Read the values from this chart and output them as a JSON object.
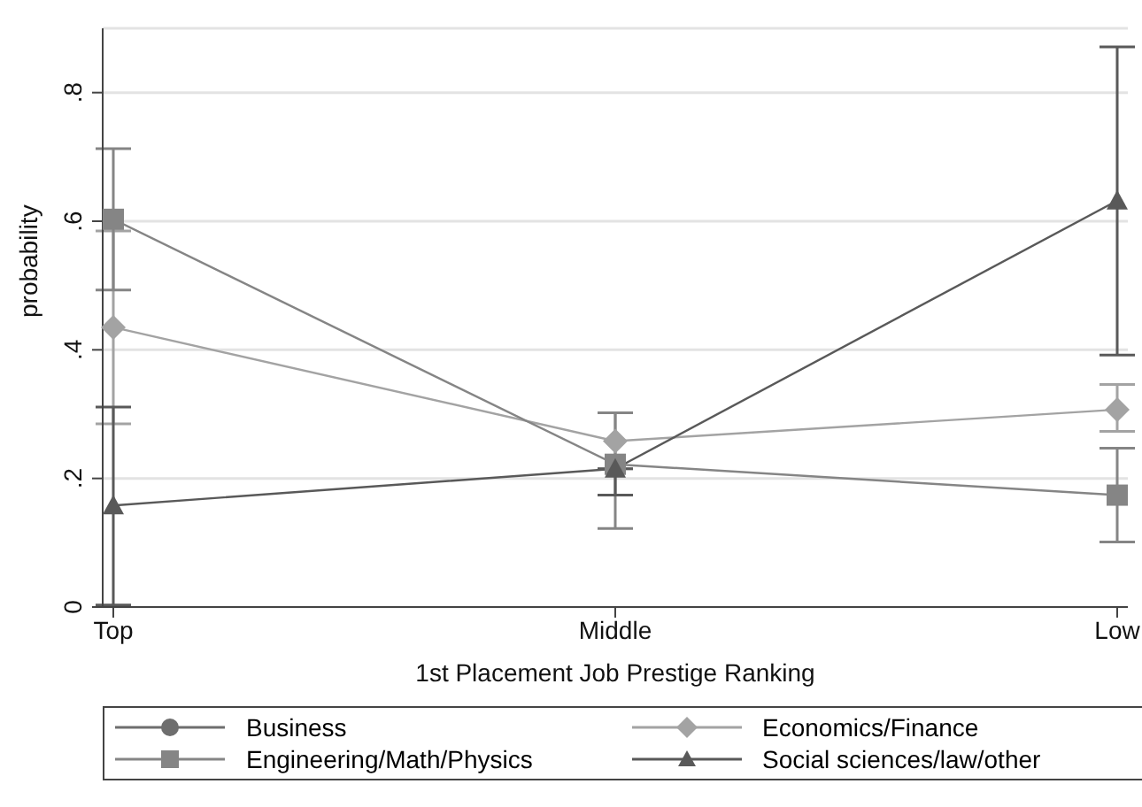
{
  "chart_data": {
    "type": "line",
    "xlabel": "1st Placement Job Prestige Ranking",
    "ylabel": "probability",
    "categories": [
      "Top",
      "Middle",
      "Low"
    ],
    "ylim": [
      0,
      0.9
    ],
    "yticks": [
      0,
      {
        "value": 0.2,
        "label": ".2"
      },
      {
        "value": 0.4,
        "label": ".4"
      },
      {
        "value": 0.6,
        "label": ".6"
      },
      {
        "value": 0.8,
        "label": ".8"
      }
    ],
    "grid": "y",
    "legend": "bottom",
    "series": [
      {
        "name": "Business",
        "color": "#6e6e6e",
        "marker": "circle",
        "values": [
          null,
          null,
          null
        ]
      },
      {
        "name": "Economics/Finance",
        "color": "#a3a3a3",
        "marker": "diamond",
        "values": [
          0.435,
          0.258,
          0.307
        ],
        "errors": [
          0.15,
          [
            0.215,
            0.302
          ],
          [
            0.273,
            0.346
          ]
        ]
      },
      {
        "name": "Engineering/Math/Physics",
        "color": "#858585",
        "marker": "square",
        "values": [
          0.603,
          0.222,
          0.174
        ],
        "errors": [
          0.11,
          [
            0.122,
            0.302
          ],
          [
            0.101,
            0.247
          ]
        ]
      },
      {
        "name": "Social sciences/law/other",
        "color": "#595959",
        "marker": "triangle",
        "values": [
          0.158,
          0.215,
          0.632
        ],
        "errors": [
          [
            0.003,
            0.311
          ],
          [
            0.174,
            0.215
          ],
          [
            0.392,
            0.871
          ]
        ]
      }
    ]
  }
}
